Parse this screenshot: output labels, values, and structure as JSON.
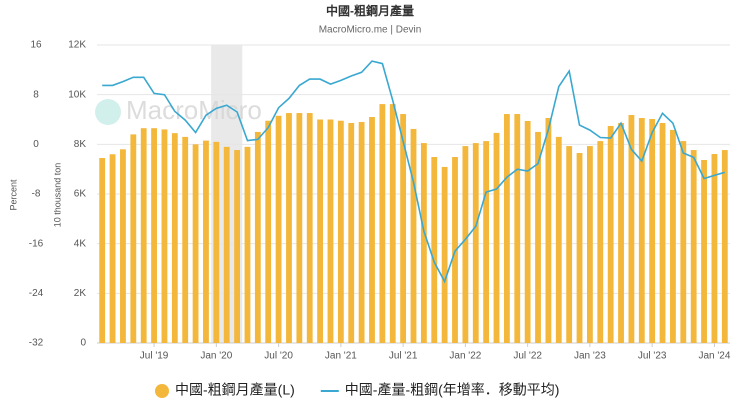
{
  "chart_data": {
    "type": "bar-line",
    "title": "中國-粗鋼月產量",
    "subtitle": "MacroMicro.me | Devin",
    "watermark": "MacroMicro",
    "y_label": "10 thousand ton",
    "y2_label": "Percent",
    "x": [
      "2019-02",
      "2019-03",
      "2019-04",
      "2019-05",
      "2019-06",
      "2019-07",
      "2019-08",
      "2019-09",
      "2019-10",
      "2019-11",
      "2019-12",
      "2020-01",
      "2020-02",
      "2020-03",
      "2020-04",
      "2020-05",
      "2020-06",
      "2020-07",
      "2020-08",
      "2020-09",
      "2020-10",
      "2020-11",
      "2020-12",
      "2021-01",
      "2021-02",
      "2021-03",
      "2021-04",
      "2021-05",
      "2021-06",
      "2021-07",
      "2021-08",
      "2021-09",
      "2021-10",
      "2021-11",
      "2021-12",
      "2022-01",
      "2022-02",
      "2022-03",
      "2022-04",
      "2022-05",
      "2022-06",
      "2022-07",
      "2022-08",
      "2022-09",
      "2022-10",
      "2022-11",
      "2022-12",
      "2023-01",
      "2023-02",
      "2023-03",
      "2023-04",
      "2023-05",
      "2023-06",
      "2023-07",
      "2023-08",
      "2023-09",
      "2023-10",
      "2023-11",
      "2023-12",
      "2024-01",
      "2024-02"
    ],
    "series": [
      {
        "name": "中國-粗鋼月產量(L)",
        "color": "#f3b73b",
        "type": "bar",
        "axis": "y",
        "values": [
          7450,
          7600,
          7800,
          8400,
          8650,
          8650,
          8600,
          8450,
          8300,
          8000,
          8150,
          8100,
          7900,
          7770,
          7900,
          8500,
          8950,
          9150,
          9260,
          9260,
          9260,
          9000,
          9000,
          8950,
          8860,
          8900,
          9100,
          9620,
          9620,
          9220,
          8620,
          8050,
          7490,
          7090,
          7490,
          7930,
          8050,
          8130,
          8460,
          9220,
          9220,
          8940,
          8500,
          9060,
          8300,
          7930,
          7650,
          7930,
          8130,
          8740,
          8860,
          9180,
          9060,
          9020,
          8860,
          8580,
          8130,
          7770,
          7370,
          7610,
          7770
        ]
      },
      {
        "name": "中國-產量-粗鋼(年增率．移動平均)",
        "color": "#3aa8d0",
        "type": "line",
        "axis": "y2",
        "values": [
          9.5,
          9.5,
          10.1,
          10.8,
          10.8,
          8.2,
          8.0,
          5.3,
          3.9,
          1.9,
          4.7,
          5.8,
          6.3,
          5.2,
          0.6,
          0.8,
          2.7,
          5.9,
          7.4,
          9.5,
          10.5,
          10.5,
          9.7,
          10.3,
          11.0,
          11.6,
          13.4,
          13.0,
          7.1,
          0.5,
          -6.1,
          -14.0,
          -19.0,
          -22.1,
          -17.2,
          -15.3,
          -13.2,
          -7.7,
          -7.2,
          -5.3,
          -4.0,
          -4.3,
          -3.1,
          2.4,
          9.3,
          11.8,
          3.1,
          2.3,
          1.1,
          1.0,
          3.4,
          -0.8,
          -2.7,
          1.9,
          5.0,
          3.4,
          -1.4,
          -2.1,
          -5.5,
          -5.0,
          -4.5
        ]
      }
    ],
    "shaded": [
      "2020-01",
      "2020-03"
    ],
    "ylim": [
      0,
      12000
    ],
    "yticks": [
      0,
      {
        "value": 2000,
        "label": "2K"
      },
      {
        "value": 4000,
        "label": "4K"
      },
      {
        "value": 6000,
        "label": "6K"
      },
      {
        "value": 8000,
        "label": "8K"
      },
      {
        "value": 10000,
        "label": "10K"
      },
      {
        "value": 12000,
        "label": "12K"
      }
    ],
    "y2lim": [
      -32,
      16
    ],
    "y2ticks": [
      -32,
      -24,
      -16,
      -8,
      0,
      8,
      16
    ],
    "xticks": [
      {
        "value": "2019-07",
        "label": "Jul '19"
      },
      {
        "value": "2020-01",
        "label": "Jan '20"
      },
      {
        "value": "2020-07",
        "label": "Jul '20"
      },
      {
        "value": "2021-01",
        "label": "Jan '21"
      },
      {
        "value": "2021-07",
        "label": "Jul '21"
      },
      {
        "value": "2022-01",
        "label": "Jan '22"
      },
      {
        "value": "2022-07",
        "label": "Jul '22"
      },
      {
        "value": "2023-01",
        "label": "Jan '23"
      },
      {
        "value": "2023-07",
        "label": "Jul '23"
      },
      {
        "value": "2024-01",
        "label": "Jan '24"
      }
    ],
    "grid": true
  }
}
